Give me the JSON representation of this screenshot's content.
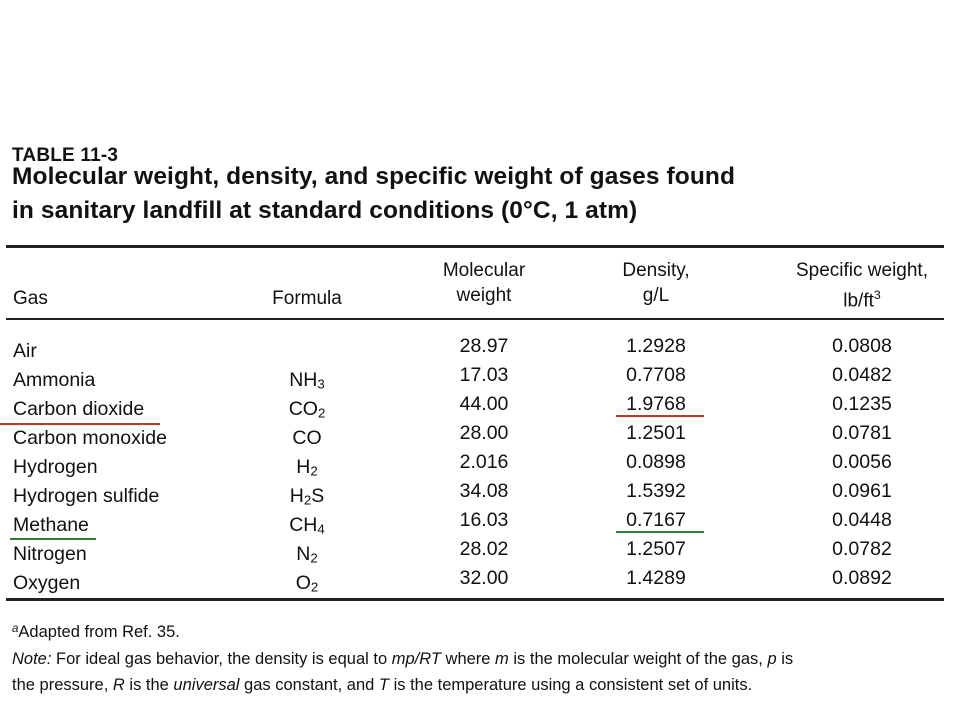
{
  "table": {
    "label": "TABLE 11-3",
    "title_line_1": "Molecular weight, density, and specific weight of gases found",
    "title_line_2": "in sanitary landfill at standard conditions (0°C, 1 atm)",
    "headers": {
      "gas": "Gas",
      "formula": "Formula",
      "molecular_weight_1": "Molecular",
      "molecular_weight_2": "weight",
      "density_1": "Density,",
      "density_2": "g/L",
      "specific_weight_1": "Specific weight,",
      "specific_weight_2_base": "lb/ft",
      "specific_weight_2_sup": "3"
    },
    "rows": [
      {
        "gas": "Air",
        "formula_base": "",
        "formula_sub": "",
        "formula_tail": "",
        "molecular_weight": "28.97",
        "density": "1.2928",
        "specific_weight": "0.0808"
      },
      {
        "gas": "Ammonia",
        "formula_base": "NH",
        "formula_sub": "3",
        "formula_tail": "",
        "molecular_weight": "17.03",
        "density": "0.7708",
        "specific_weight": "0.0482"
      },
      {
        "gas": "Carbon dioxide",
        "formula_base": "CO",
        "formula_sub": "2",
        "formula_tail": "",
        "molecular_weight": "44.00",
        "density": "1.9768",
        "specific_weight": "0.1235"
      },
      {
        "gas": "Carbon monoxide",
        "formula_base": "CO",
        "formula_sub": "",
        "formula_tail": "",
        "molecular_weight": "28.00",
        "density": "1.2501",
        "specific_weight": "0.0781"
      },
      {
        "gas": "Hydrogen",
        "formula_base": "H",
        "formula_sub": "2",
        "formula_tail": "",
        "molecular_weight": "2.016",
        "density": "0.0898",
        "specific_weight": "0.0056"
      },
      {
        "gas": "Hydrogen sulfide",
        "formula_base": "H",
        "formula_sub": "2",
        "formula_tail": "S",
        "molecular_weight": "34.08",
        "density": "1.5392",
        "specific_weight": "0.0961"
      },
      {
        "gas": "Methane",
        "formula_base": "CH",
        "formula_sub": "4",
        "formula_tail": "",
        "molecular_weight": "16.03",
        "density": "0.7167",
        "specific_weight": "0.0448"
      },
      {
        "gas": "Nitrogen",
        "formula_base": "N",
        "formula_sub": "2",
        "formula_tail": "",
        "molecular_weight": "28.02",
        "density": "1.2507",
        "specific_weight": "0.0782"
      },
      {
        "gas": "Oxygen",
        "formula_base": "O",
        "formula_sub": "2",
        "formula_tail": "",
        "molecular_weight": "32.00",
        "density": "1.4289",
        "specific_weight": "0.0892"
      }
    ],
    "footnote_marker": "a",
    "footnote_text": "Adapted from Ref. 35.",
    "note": {
      "label": "Note:",
      "line1_a": " For ideal gas behavior, the density is equal to ",
      "line1_formula": "mp/RT",
      "line1_b": " where ",
      "line1_m": "m",
      "line1_c": " is the molecular weight of the gas, ",
      "line1_p": "p",
      "line1_d": " is",
      "line2_a": "the pressure, ",
      "line2_R": "R",
      "line2_b": " is the ",
      "line2_universal": "universal",
      "line2_c": " gas constant, and ",
      "line2_T": "T",
      "line2_d": " is the temperature using a consistent set of units."
    }
  },
  "highlight_colors": {
    "carbon_dioxide_underline": "#c0392b",
    "methane_underline": "#2e7d32"
  }
}
